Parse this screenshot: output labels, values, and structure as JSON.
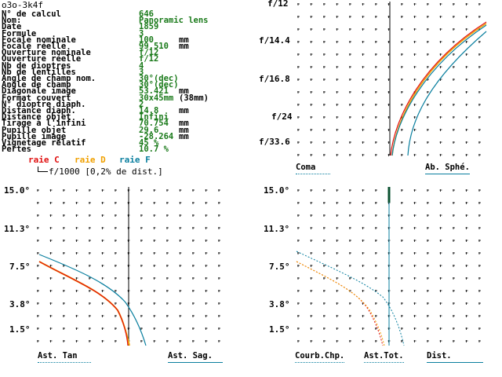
{
  "title": "o3o-3k4f",
  "params": [
    {
      "label": "N° de calcul",
      "value": "646",
      "unit": ""
    },
    {
      "label": "Nom:",
      "value": "Panoramic lens",
      "unit": ""
    },
    {
      "label": "Date",
      "value": "1859",
      "unit": ""
    },
    {
      "label": "Formule",
      "value": "3",
      "unit": ""
    },
    {
      "label": "Focale nominale",
      "value": "100",
      "unit": "mm"
    },
    {
      "label": "Focale réelle",
      "value": "99.510",
      "unit": "mm"
    },
    {
      "label": "Ouverture nominale",
      "value": "f/12",
      "unit": ""
    },
    {
      "label": "Ouverture réelle",
      "value": "f/12",
      "unit": ""
    },
    {
      "label": "Nb de dioptres",
      "value": "4",
      "unit": ""
    },
    {
      "label": "Nb de lentilles",
      "value": "3",
      "unit": ""
    },
    {
      "label": "Angle de champ nom.",
      "value": "30°(dec)",
      "unit": ""
    },
    {
      "label": "Angle de champ",
      "value": "30°(dec)",
      "unit": ""
    },
    {
      "label": "Diagonale image",
      "value": "53.421",
      "unit": "mm"
    },
    {
      "label": "Format couvert",
      "value": "30x45mm",
      "unit": "(38mm)"
    },
    {
      "label": "N° dioptre diaph.",
      "value": "2",
      "unit": ""
    },
    {
      "label": "Distance diaph.",
      "value": "14.8",
      "unit": "mm"
    },
    {
      "label": "Distance objet",
      "value": "Infini",
      "unit": ""
    },
    {
      "label": "Tirage à l'infini",
      "value": "70.754",
      "unit": "mm"
    },
    {
      "label": "Pupille objet",
      "value": "29.6",
      "unit": "mm"
    },
    {
      "label": "Pupille image",
      "value": "-28.264",
      "unit": "mm"
    },
    {
      "label": "Vignetage relatif",
      "value": "45 %",
      "unit": ""
    },
    {
      "label": "Pertes",
      "value": "10.7 %",
      "unit": ""
    }
  ],
  "legend": {
    "c": "raie C",
    "d": "raie D",
    "f": "raie F",
    "scale": "f/1000 [0,2% de dist.]",
    "colors": {
      "c": "#e01010",
      "d": "#f0a000",
      "f": "#0a7f9f",
      "values": "#1a7a1a"
    }
  },
  "aperture_chart": {
    "y_labels": [
      "f/12",
      "f/14.4",
      "f/16.8",
      "f/24",
      "f/33.6"
    ],
    "coma_label": "Coma",
    "sphe_label": "Ab. Sphé."
  },
  "astig_chart": {
    "y_labels": [
      "15.0°",
      "11.3°",
      "7.5°",
      "3.8°",
      "1.5°"
    ],
    "tan_label": "Ast. Tan",
    "sag_label": "Ast. Sag."
  },
  "field_chart": {
    "y_labels": [
      "15.0°",
      "11.3°",
      "7.5°",
      "3.8°",
      "1.5°"
    ],
    "curv_label": "Courb.Chp.",
    "tot_label": "Ast.Tot.",
    "dist_label": "Dist."
  }
}
